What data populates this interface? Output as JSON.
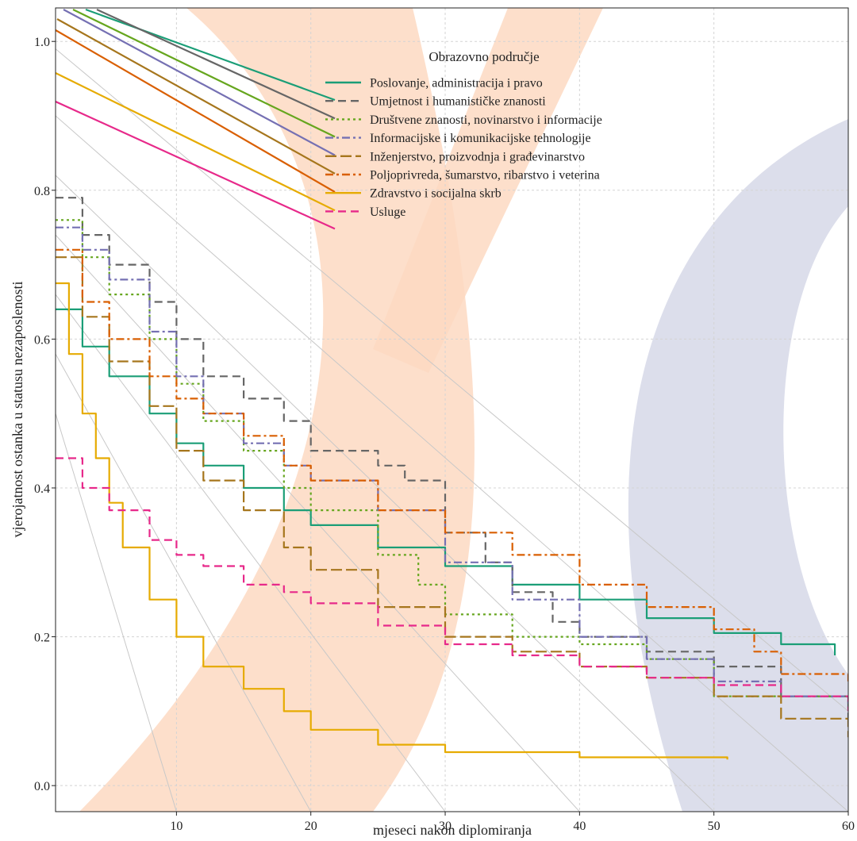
{
  "chart_data": {
    "type": "line",
    "title": "",
    "xlabel": "mjeseci nakon diplomiranja",
    "ylabel": "vjerojatnost ostanka u statusu nezaposlenosti",
    "xlim": [
      1,
      60
    ],
    "ylim": [
      -0.035,
      1.045
    ],
    "x_ticks": [
      10,
      20,
      30,
      40,
      50,
      60
    ],
    "y_ticks": [
      0.0,
      0.2,
      0.4,
      0.6,
      0.8,
      1.0
    ],
    "x_tick_labels": [
      "10",
      "20",
      "30",
      "40",
      "50",
      "60"
    ],
    "y_tick_labels": [
      "0.0",
      "0.2",
      "0.4",
      "0.6",
      "0.8",
      "1.0"
    ],
    "grid": true,
    "legend_position": "top-center",
    "legend_title": "Obrazovno područje",
    "series": [
      {
        "name": "Poslovanje, administracija i pravo",
        "color": "#1b9e77",
        "dash": "solid",
        "x": [
          1,
          3,
          5,
          8,
          10,
          12,
          15,
          18,
          20,
          25,
          30,
          35,
          40,
          45,
          50,
          55,
          59
        ],
        "y": [
          0.64,
          0.59,
          0.55,
          0.5,
          0.46,
          0.43,
          0.4,
          0.37,
          0.35,
          0.32,
          0.295,
          0.27,
          0.25,
          0.225,
          0.205,
          0.19,
          0.175
        ]
      },
      {
        "name": "Umjetnost i humanističke znanosti",
        "color": "#666666",
        "dash": "dashed",
        "x": [
          1,
          3,
          5,
          8,
          10,
          12,
          15,
          18,
          20,
          25,
          27,
          30,
          33,
          35,
          38,
          40,
          45,
          50,
          55,
          60
        ],
        "y": [
          0.79,
          0.74,
          0.7,
          0.65,
          0.6,
          0.55,
          0.52,
          0.49,
          0.45,
          0.43,
          0.41,
          0.34,
          0.3,
          0.26,
          0.22,
          0.2,
          0.18,
          0.16,
          0.12,
          0.09
        ]
      },
      {
        "name": "Društvene znanosti, novinarstvo i informacije",
        "color": "#66a61e",
        "dash": "dotted",
        "x": [
          1,
          3,
          5,
          8,
          10,
          12,
          15,
          18,
          20,
          25,
          28,
          30,
          35,
          40,
          45,
          50,
          55,
          60
        ],
        "y": [
          0.76,
          0.71,
          0.66,
          0.6,
          0.54,
          0.49,
          0.45,
          0.4,
          0.37,
          0.31,
          0.27,
          0.23,
          0.2,
          0.19,
          0.17,
          0.12,
          0.12,
          0.12
        ]
      },
      {
        "name": "Informacijske i komunikacijske tehnologije",
        "color": "#7570b3",
        "dash": "dashdot",
        "x": [
          1,
          3,
          5,
          8,
          10,
          12,
          15,
          18,
          20,
          25,
          30,
          35,
          40,
          45,
          50,
          55,
          60
        ],
        "y": [
          0.75,
          0.72,
          0.68,
          0.61,
          0.55,
          0.5,
          0.46,
          0.43,
          0.41,
          0.37,
          0.3,
          0.25,
          0.2,
          0.17,
          0.14,
          0.12,
          0.11
        ]
      },
      {
        "name": "Inženjerstvo, proizvodnja i građevinarstvo",
        "color": "#a6761d",
        "dash": "longdash",
        "x": [
          1,
          3,
          5,
          8,
          10,
          12,
          15,
          18,
          20,
          25,
          30,
          35,
          40,
          45,
          50,
          55,
          60
        ],
        "y": [
          0.71,
          0.63,
          0.57,
          0.51,
          0.45,
          0.41,
          0.37,
          0.32,
          0.29,
          0.24,
          0.2,
          0.18,
          0.16,
          0.145,
          0.12,
          0.09,
          0.065
        ]
      },
      {
        "name": "Poljoprivreda, šumarstvo, ribarstvo i veterina",
        "color": "#d95f02",
        "dash": "dashdot",
        "x": [
          1,
          3,
          5,
          8,
          10,
          12,
          15,
          18,
          20,
          25,
          30,
          35,
          40,
          45,
          50,
          53,
          55,
          60
        ],
        "y": [
          0.72,
          0.65,
          0.6,
          0.55,
          0.52,
          0.5,
          0.47,
          0.43,
          0.41,
          0.37,
          0.34,
          0.31,
          0.27,
          0.24,
          0.21,
          0.18,
          0.15,
          0.14
        ]
      },
      {
        "name": "Zdravstvo i socijalna skrb",
        "color": "#e6ab02",
        "dash": "solid",
        "x": [
          1,
          2,
          3,
          4,
          5,
          6,
          8,
          10,
          12,
          15,
          18,
          20,
          25,
          30,
          40,
          51
        ],
        "y": [
          0.675,
          0.58,
          0.5,
          0.44,
          0.38,
          0.32,
          0.25,
          0.2,
          0.16,
          0.13,
          0.1,
          0.075,
          0.055,
          0.045,
          0.038,
          0.035
        ]
      },
      {
        "name": "Usluge",
        "color": "#e7298a",
        "dash": "dashed",
        "x": [
          1,
          3,
          5,
          8,
          10,
          12,
          15,
          18,
          20,
          25,
          30,
          35,
          40,
          45,
          50,
          55,
          60
        ],
        "y": [
          0.44,
          0.4,
          0.37,
          0.33,
          0.31,
          0.295,
          0.27,
          0.26,
          0.245,
          0.215,
          0.19,
          0.175,
          0.16,
          0.145,
          0.135,
          0.12,
          0.1
        ]
      }
    ]
  }
}
